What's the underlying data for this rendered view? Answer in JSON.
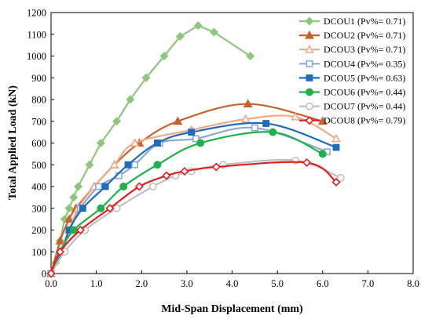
{
  "chart_data": {
    "type": "line",
    "xlabel": "Mid-Span Displacement (mm)",
    "ylabel": "Total Applied Load   (kN)",
    "xlim": [
      0,
      8
    ],
    "ylim": [
      0,
      1200
    ],
    "x_ticks": [
      "0.0",
      "1.0",
      "2.0",
      "3.0",
      "4.0",
      "5.0",
      "6.0",
      "7.0",
      "8.0"
    ],
    "y_ticks": [
      "0",
      "100",
      "200",
      "300",
      "400",
      "500",
      "600",
      "700",
      "800",
      "900",
      "1000",
      "1100",
      "1200"
    ],
    "grid": false,
    "legend_position": "top-right",
    "series": [
      {
        "name": "DCOU1 (Pv%= 0.71)",
        "color": "#8ec77b",
        "marker": "diamond",
        "filled": true,
        "smooth": false,
        "points": [
          [
            0,
            0
          ],
          [
            0.1,
            50
          ],
          [
            0.2,
            150
          ],
          [
            0.3,
            250
          ],
          [
            0.4,
            300
          ],
          [
            0.5,
            350
          ],
          [
            0.6,
            400
          ],
          [
            0.85,
            500
          ],
          [
            1.1,
            600
          ],
          [
            1.45,
            700
          ],
          [
            1.75,
            800
          ],
          [
            2.1,
            900
          ],
          [
            2.5,
            1000
          ],
          [
            2.85,
            1090
          ],
          [
            3.25,
            1140
          ],
          [
            3.6,
            1110
          ],
          [
            4.4,
            1000
          ]
        ]
      },
      {
        "name": "DCOU2 (Pv%= 0.71)",
        "color": "#c8622c",
        "marker": "triangle",
        "filled": true,
        "smooth": true,
        "points": [
          [
            0,
            0
          ],
          [
            0.2,
            150
          ],
          [
            0.4,
            250
          ],
          [
            0.55,
            300
          ],
          [
            0.95,
            400
          ],
          [
            1.4,
            500
          ],
          [
            1.95,
            600
          ],
          [
            2.8,
            700
          ],
          [
            4.35,
            780
          ],
          [
            6.0,
            700
          ]
        ]
      },
      {
        "name": "DCOU3 (Pv%= 0.71)",
        "color": "#f2aa84",
        "marker": "triangle",
        "filled": false,
        "smooth": true,
        "points": [
          [
            0,
            0
          ],
          [
            0.2,
            100
          ],
          [
            0.4,
            200
          ],
          [
            0.6,
            300
          ],
          [
            0.95,
            400
          ],
          [
            1.4,
            500
          ],
          [
            1.85,
            600
          ],
          [
            3.1,
            660
          ],
          [
            4.3,
            710
          ],
          [
            5.4,
            720
          ],
          [
            6.3,
            620
          ]
        ]
      },
      {
        "name": "DCOU4 (Pv%= 0.35)",
        "color": "#8ba9d8",
        "marker": "square",
        "filled": false,
        "smooth": true,
        "points": [
          [
            0,
            0
          ],
          [
            0.2,
            100
          ],
          [
            0.4,
            200
          ],
          [
            0.65,
            300
          ],
          [
            1.05,
            400
          ],
          [
            1.5,
            450
          ],
          [
            1.85,
            500
          ],
          [
            2.4,
            600
          ],
          [
            3.2,
            620
          ],
          [
            4.5,
            670
          ],
          [
            6.1,
            560
          ]
        ]
      },
      {
        "name": "DCOU5 (Pv%= 0.63)",
        "color": "#1f6bbd",
        "marker": "square",
        "filled": true,
        "smooth": true,
        "points": [
          [
            0,
            0
          ],
          [
            0.25,
            100
          ],
          [
            0.4,
            200
          ],
          [
            0.7,
            300
          ],
          [
            1.2,
            400
          ],
          [
            1.7,
            500
          ],
          [
            2.35,
            600
          ],
          [
            3.1,
            650
          ],
          [
            4.75,
            690
          ],
          [
            6.3,
            580
          ]
        ]
      },
      {
        "name": "DCOU6 (Pv%= 0.44)",
        "color": "#21b04b",
        "marker": "circle",
        "filled": true,
        "smooth": true,
        "points": [
          [
            0,
            0
          ],
          [
            0.2,
            100
          ],
          [
            0.5,
            200
          ],
          [
            1.1,
            300
          ],
          [
            1.6,
            400
          ],
          [
            2.35,
            500
          ],
          [
            3.3,
            600
          ],
          [
            4.9,
            650
          ],
          [
            6.0,
            550
          ]
        ]
      },
      {
        "name": "DCOU7 (Pv%= 0.44)",
        "color": "#c0c0c0",
        "marker": "circle",
        "filled": false,
        "smooth": true,
        "points": [
          [
            0,
            0
          ],
          [
            0.3,
            100
          ],
          [
            0.75,
            200
          ],
          [
            1.45,
            300
          ],
          [
            2.25,
            400
          ],
          [
            2.75,
            450
          ],
          [
            3.1,
            470
          ],
          [
            3.8,
            500
          ],
          [
            5.4,
            520
          ],
          [
            6.4,
            440
          ]
        ]
      },
      {
        "name": "DCOU8 (Pv%= 0.79)",
        "color": "#e41e1e",
        "marker": "diamond",
        "filled": false,
        "smooth": true,
        "points": [
          [
            0,
            0
          ],
          [
            0.2,
            100
          ],
          [
            0.65,
            200
          ],
          [
            1.3,
            300
          ],
          [
            1.95,
            400
          ],
          [
            2.55,
            450
          ],
          [
            2.95,
            470
          ],
          [
            3.65,
            490
          ],
          [
            5.65,
            510
          ],
          [
            6.3,
            420
          ]
        ]
      }
    ]
  }
}
